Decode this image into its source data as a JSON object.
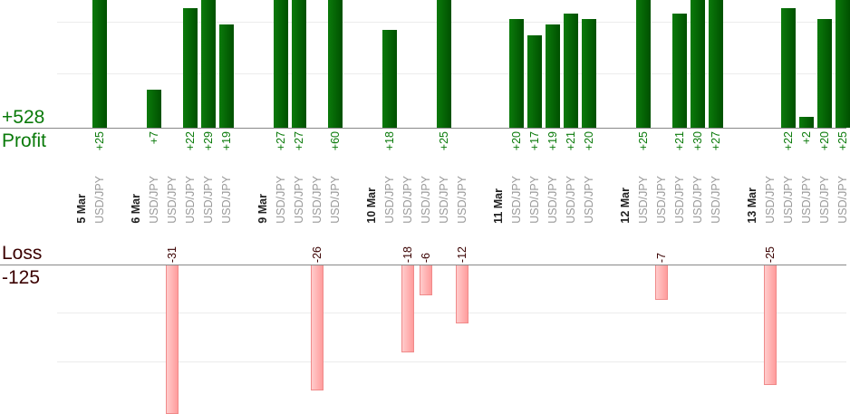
{
  "summary": {
    "profit_total": "+528",
    "profit_label": "Profit",
    "loss_label": "Loss",
    "loss_total": "-125"
  },
  "colors": {
    "profit": "#0a7a0a",
    "loss": "#ff9c9c"
  },
  "chart_data": {
    "type": "bar",
    "columns": [
      {
        "date": "5 Mar"
      },
      {
        "pair": "USD/JPY",
        "value": 25
      },
      {},
      {
        "date": "6 Mar"
      },
      {
        "pair": "USD/JPY",
        "value": 7
      },
      {
        "pair": "USD/JPY",
        "value": -31
      },
      {
        "pair": "USD/JPY",
        "value": 22
      },
      {
        "pair": "USD/JPY",
        "value": 29
      },
      {
        "pair": "USD/JPY",
        "value": 19
      },
      {},
      {
        "date": "9 Mar"
      },
      {
        "pair": "USD/JPY",
        "value": 27
      },
      {
        "pair": "USD/JPY",
        "value": 27
      },
      {
        "pair": "USD/JPY",
        "value": -26
      },
      {
        "pair": "USD/JPY",
        "value": 60
      },
      {},
      {
        "date": "10 Mar"
      },
      {
        "pair": "USD/JPY",
        "value": 18
      },
      {
        "pair": "USD/JPY",
        "value": -18
      },
      {
        "pair": "USD/JPY",
        "value": -6
      },
      {
        "pair": "USD/JPY",
        "value": 25
      },
      {
        "pair": "USD/JPY",
        "value": -12
      },
      {},
      {
        "date": "11 Mar"
      },
      {
        "pair": "USD/JPY",
        "value": 20
      },
      {
        "pair": "USD/JPY",
        "value": 17
      },
      {
        "pair": "USD/JPY",
        "value": 19
      },
      {
        "pair": "USD/JPY",
        "value": 21
      },
      {
        "pair": "USD/JPY",
        "value": 20
      },
      {},
      {
        "date": "12 Mar"
      },
      {
        "pair": "USD/JPY",
        "value": 25
      },
      {
        "pair": "USD/JPY",
        "value": -7
      },
      {
        "pair": "USD/JPY",
        "value": 21
      },
      {
        "pair": "USD/JPY",
        "value": 30
      },
      {
        "pair": "USD/JPY",
        "value": 27
      },
      {},
      {
        "date": "13 Mar"
      },
      {
        "pair": "USD/JPY",
        "value": -25
      },
      {
        "pair": "USD/JPY",
        "value": 22
      },
      {
        "pair": "USD/JPY",
        "value": 2
      },
      {
        "pair": "USD/JPY",
        "value": 20
      },
      {
        "pair": "USD/JPY",
        "value": 25
      }
    ]
  }
}
